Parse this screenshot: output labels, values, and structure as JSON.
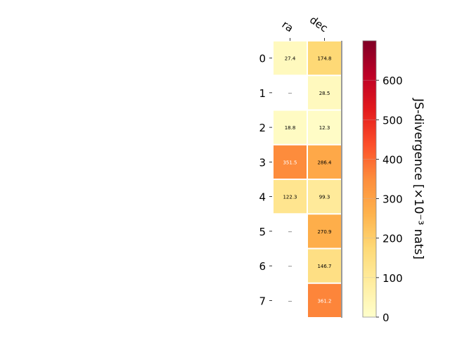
{
  "chart_data": {
    "type": "heatmap",
    "columns": [
      "ra",
      "dec"
    ],
    "rows": [
      "0",
      "1",
      "2",
      "3",
      "4",
      "5",
      "6",
      "7"
    ],
    "values": [
      [
        27.4,
        174.8
      ],
      [
        null,
        28.5
      ],
      [
        18.8,
        12.3
      ],
      [
        351.5,
        286.4
      ],
      [
        122.3,
        99.3
      ],
      [
        null,
        270.9
      ],
      [
        null,
        146.7
      ],
      [
        null,
        361.2
      ]
    ],
    "missing_label": "--",
    "colorbar": {
      "label": "JS-divergence [×10⁻³ nats]",
      "range": [
        0,
        700
      ],
      "ticks": [
        0,
        100,
        200,
        300,
        400,
        500,
        600
      ],
      "colormap": "YlOrRd",
      "colors": [
        "#ffffcc",
        "#ffeda0",
        "#fed976",
        "#feb24c",
        "#fd8d3c",
        "#fc4e2a",
        "#e31a1c",
        "#bd0026",
        "#800026"
      ]
    },
    "grid": false
  }
}
